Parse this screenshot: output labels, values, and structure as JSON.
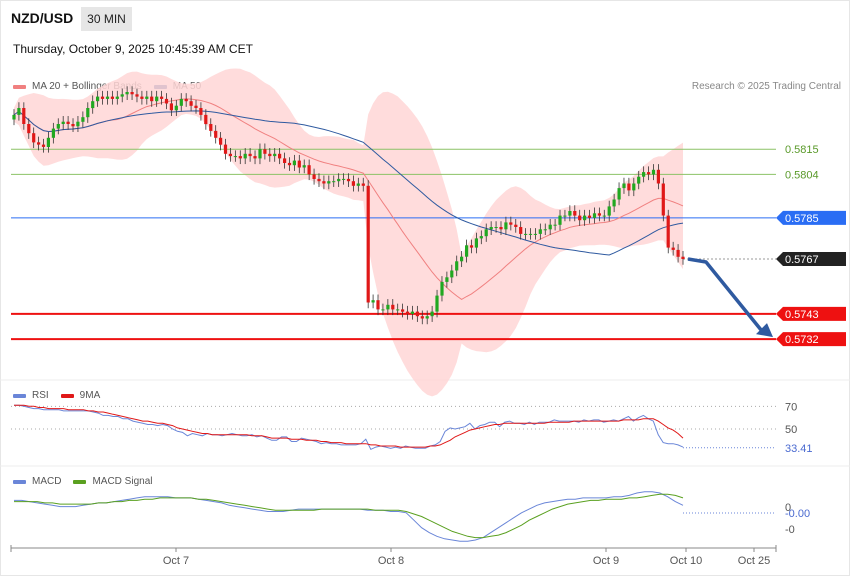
{
  "header": {
    "symbol": "NZD/USD",
    "timeframe": "30 MIN",
    "datetime": "Thursday, October 9, 2025 10:45:39 AM CET"
  },
  "legend": {
    "ma20": "MA 20 + Bollinger Bands",
    "ma50": "MA 50",
    "rsi": "RSI",
    "rsi_ma": "9MA",
    "macd": "MACD",
    "macd_signal": "MACD Signal"
  },
  "copyright": "Research © 2025 Trading Central",
  "colors": {
    "candle_up": "#21a821",
    "candle_down": "#e01818",
    "bollinger": "#ffd6d6",
    "ma20": "#f08080",
    "ma50": "#2f5aa0",
    "support": "#ee1111",
    "resistance": "#8cc266",
    "pivot": "#2a6df4",
    "current": "#222222",
    "arrow": "#2f5aa0",
    "rsi": "#6a86d8",
    "rsi_ma": "#e01818",
    "macd": "#6a86d8",
    "macd_signal": "#5aa020"
  },
  "x_labels": [
    "Oct 7",
    "Oct 8",
    "Oct 9",
    "Oct 10",
    "Oct 25"
  ],
  "levels": [
    {
      "value": 0.5815,
      "label": "0.5815",
      "kind": "resistance"
    },
    {
      "value": 0.5804,
      "label": "0.5804",
      "kind": "resistance"
    },
    {
      "value": 0.5785,
      "label": "0.5785",
      "kind": "pivot"
    },
    {
      "value": 0.5767,
      "label": "0.5767",
      "kind": "current"
    },
    {
      "value": 0.5743,
      "label": "0.5743",
      "kind": "support"
    },
    {
      "value": 0.5732,
      "label": "0.5732",
      "kind": "support"
    }
  ],
  "rsi_levels": [
    {
      "value": 70,
      "label": "70"
    },
    {
      "value": 50,
      "label": "50"
    },
    {
      "value": 33.41,
      "label": "33.41"
    }
  ],
  "macd_labels": [
    {
      "value": 0,
      "label": "0"
    },
    {
      "value": 0.0,
      "label": "-0.00"
    },
    {
      "value": -0.0004,
      "label": "-0"
    }
  ],
  "chart_data": {
    "type": "candlestick",
    "title": "NZD/USD 30 MIN",
    "ylim": [
      0.5715,
      0.584
    ],
    "close": [
      0.583,
      0.5833,
      0.5826,
      0.5822,
      0.5818,
      0.5817,
      0.5816,
      0.582,
      0.5824,
      0.5826,
      0.5827,
      0.5826,
      0.5825,
      0.5827,
      0.5829,
      0.5833,
      0.5836,
      0.5838,
      0.5837,
      0.5838,
      0.5837,
      0.5838,
      0.5839,
      0.584,
      0.5839,
      0.5838,
      0.5837,
      0.5838,
      0.5836,
      0.5838,
      0.5837,
      0.5835,
      0.5832,
      0.5834,
      0.5837,
      0.5836,
      0.5834,
      0.5833,
      0.583,
      0.5826,
      0.5823,
      0.582,
      0.5817,
      0.5813,
      0.5812,
      0.5812,
      0.5811,
      0.5813,
      0.5812,
      0.5811,
      0.5815,
      0.5813,
      0.5812,
      0.5813,
      0.5811,
      0.5809,
      0.5808,
      0.581,
      0.5807,
      0.5808,
      0.5804,
      0.5802,
      0.5801,
      0.58,
      0.5801,
      0.5801,
      0.5802,
      0.5802,
      0.5801,
      0.5799,
      0.58,
      0.5799,
      0.5748,
      0.5749,
      0.5745,
      0.5745,
      0.5747,
      0.5745,
      0.5745,
      0.5744,
      0.5743,
      0.5744,
      0.5742,
      0.5741,
      0.5742,
      0.5744,
      0.5751,
      0.5757,
      0.5759,
      0.5762,
      0.5766,
      0.5768,
      0.5773,
      0.5772,
      0.5776,
      0.5777,
      0.578,
      0.5781,
      0.5781,
      0.578,
      0.5783,
      0.5782,
      0.5781,
      0.5778,
      0.5778,
      0.5778,
      0.5778,
      0.578,
      0.578,
      0.5782,
      0.5782,
      0.5786,
      0.5786,
      0.5788,
      0.5786,
      0.5784,
      0.5786,
      0.5785,
      0.5787,
      0.5786,
      0.5786,
      0.579,
      0.5793,
      0.5798,
      0.58,
      0.5797,
      0.58,
      0.5803,
      0.5805,
      0.5804,
      0.5806,
      0.58,
      0.5786,
      0.5772,
      0.5771,
      0.5768,
      0.5767
    ]
  },
  "rsi_data": [
    71,
    71,
    70,
    69,
    68,
    68,
    67,
    67,
    67,
    67,
    66,
    66,
    66,
    66,
    66,
    66,
    65,
    64,
    62,
    62,
    61,
    61,
    59,
    59,
    57,
    56,
    55,
    54,
    54,
    53,
    54,
    53,
    50,
    48,
    47,
    44,
    46,
    45,
    44,
    46,
    45,
    45,
    44,
    45,
    46,
    45,
    44,
    44,
    45,
    43,
    44,
    42,
    40,
    40,
    43,
    43,
    39,
    39,
    42,
    41,
    40,
    39,
    37,
    38,
    37,
    37,
    36,
    36,
    36,
    36,
    37,
    41,
    32,
    34,
    35,
    34,
    33,
    34,
    33,
    35,
    34,
    33,
    33,
    33,
    35,
    36,
    39,
    48,
    51,
    50,
    51,
    52,
    55,
    50,
    53,
    54,
    56,
    56,
    52,
    56,
    57,
    55,
    55,
    54,
    56,
    54,
    56,
    56,
    56,
    58,
    57,
    57,
    57,
    57,
    56,
    58,
    57,
    58,
    58,
    56,
    57,
    58,
    57,
    59,
    61,
    57,
    60,
    62,
    59,
    57,
    45,
    38,
    37,
    37,
    36,
    34
  ],
  "rsi_ma_data": [
    71,
    71,
    71,
    70,
    70,
    69,
    69,
    68,
    68,
    68,
    68,
    67,
    67,
    67,
    67,
    66,
    66,
    65,
    65,
    64,
    63,
    62,
    61,
    60,
    59,
    58,
    57,
    57,
    56,
    55,
    55,
    54,
    53,
    51,
    50,
    49,
    48,
    47,
    46,
    46,
    45,
    45,
    45,
    45,
    45,
    45,
    45,
    45,
    44,
    44,
    44,
    43,
    42,
    42,
    42,
    42,
    41,
    41,
    41,
    40,
    40,
    40,
    39,
    39,
    38,
    38,
    38,
    37,
    37,
    37,
    37,
    37,
    36,
    36,
    35,
    35,
    35,
    35,
    34,
    34,
    34,
    34,
    34,
    34,
    35,
    35,
    36,
    38,
    40,
    43,
    45,
    47,
    49,
    50,
    51,
    52,
    53,
    54,
    54,
    55,
    55,
    55,
    55,
    55,
    55,
    55,
    55,
    55,
    56,
    56,
    56,
    56,
    56,
    57,
    57,
    57,
    57,
    57,
    57,
    57,
    57,
    57,
    57,
    58,
    58,
    58,
    58,
    59,
    59,
    59,
    57,
    54,
    51,
    49,
    46,
    42
  ],
  "macd_data": [
    0.0004,
    0.0004,
    0.0003,
    0.0002,
    0.0001,
    0.0,
    -0.0001,
    -0.0001,
    -0.0001,
    0.0,
    0.0001,
    0.0002,
    0.0002,
    0.0003,
    0.0004,
    0.0005,
    0.0006,
    0.0007,
    0.0007,
    0.0007,
    0.0007,
    0.0006,
    0.0006,
    0.0006,
    0.0005,
    0.0004,
    0.0003,
    0.0002,
    0.0,
    -0.0001,
    -0.0002,
    -0.0003,
    -0.0004,
    -0.0005,
    -0.0005,
    -0.0005,
    -0.0004,
    -0.0003,
    -0.0003,
    -0.0003,
    -0.0003,
    -0.0003,
    -0.0003,
    -0.0003,
    -0.0003,
    -0.0003,
    -0.0004,
    -0.0004,
    -0.0004,
    -0.0005,
    -0.0005,
    -0.0006,
    -0.0012,
    -0.0018,
    -0.0022,
    -0.0025,
    -0.0027,
    -0.0028,
    -0.0029,
    -0.0029,
    -0.0028,
    -0.0026,
    -0.0022,
    -0.0018,
    -0.0014,
    -0.001,
    -0.0006,
    -0.0003,
    0.0,
    0.0002,
    0.0003,
    0.0004,
    0.0005,
    0.0005,
    0.0006,
    0.0006,
    0.0006,
    0.0006,
    0.0007,
    0.0007,
    0.0008,
    0.001,
    0.0011,
    0.0011,
    0.001,
    0.0007,
    0.0003,
    0.0
  ],
  "macd_signal_data": [
    0.0003,
    0.0003,
    0.0003,
    0.0003,
    0.0002,
    0.0002,
    0.0001,
    0.0001,
    0.0001,
    0.0001,
    0.0001,
    0.0002,
    0.0002,
    0.0003,
    0.0003,
    0.0004,
    0.0004,
    0.0005,
    0.0005,
    0.0006,
    0.0006,
    0.0006,
    0.0006,
    0.0006,
    0.0005,
    0.0005,
    0.0004,
    0.0003,
    0.0002,
    0.0001,
    0.0,
    -0.0001,
    -0.0002,
    -0.0003,
    -0.0004,
    -0.0004,
    -0.0004,
    -0.0004,
    -0.0004,
    -0.0004,
    -0.0003,
    -0.0003,
    -0.0003,
    -0.0003,
    -0.0003,
    -0.0003,
    -0.0003,
    -0.0004,
    -0.0004,
    -0.0004,
    -0.0004,
    -0.0005,
    -0.0007,
    -0.0009,
    -0.0012,
    -0.0015,
    -0.0018,
    -0.0021,
    -0.0023,
    -0.0025,
    -0.0026,
    -0.0026,
    -0.0025,
    -0.0024,
    -0.0022,
    -0.0019,
    -0.0016,
    -0.0012,
    -0.0009,
    -0.0006,
    -0.0003,
    -0.0001,
    0.0001,
    0.0002,
    0.0003,
    0.0004,
    0.0004,
    0.0005,
    0.0005,
    0.0005,
    0.0006,
    0.0006,
    0.0007,
    0.0008,
    0.0009,
    0.0009,
    0.0008,
    0.0006
  ]
}
